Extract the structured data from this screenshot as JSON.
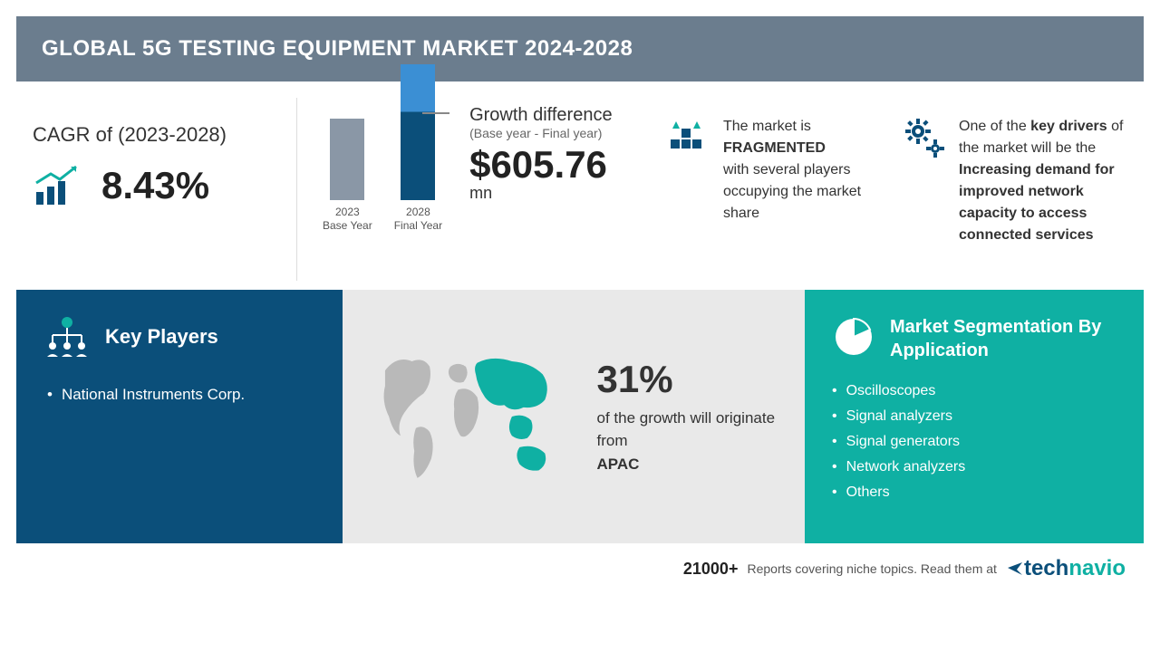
{
  "header": {
    "title": "GLOBAL 5G TESTING EQUIPMENT MARKET 2024-2028"
  },
  "cagr": {
    "label": "CAGR of (2023-2028)",
    "value": "8.43%",
    "icon_color": "#0fb0a3"
  },
  "growth": {
    "title": "Growth difference",
    "subtitle": "(Base year - Final year)",
    "value": "$605.76",
    "unit": "mn",
    "bars": [
      {
        "label_top": "2023",
        "label_bottom": "Base Year",
        "height": 90,
        "colors": [
          "#8a97a6"
        ]
      },
      {
        "label_top": "2028",
        "label_bottom": "Final Year",
        "height": 150,
        "colors": [
          "#3b8fd4",
          "#0b4f7a"
        ]
      }
    ]
  },
  "fragmented": {
    "text_pre": "The market is",
    "highlight": "FRAGMENTED",
    "text_post": "with several players occupying the market share",
    "icon_color": "#0b4f7a"
  },
  "driver": {
    "text_pre": "One of the ",
    "highlight1": "key drivers",
    "text_mid": " of the market will be the ",
    "highlight2": "Increasing demand for improved network capacity to access connected services",
    "icon_color": "#0b4f7a"
  },
  "players": {
    "title": "Key Players",
    "items": [
      "National Instruments Corp."
    ],
    "bg": "#0b4f7a"
  },
  "region": {
    "percent": "31%",
    "desc_pre": "of the growth will originate from",
    "region_name": "APAC",
    "bg": "#e9e9e9",
    "map_land": "#b9b9b9",
    "map_highlight": "#0fb0a3"
  },
  "segmentation": {
    "title": "Market Segmentation By Application",
    "items": [
      "Oscilloscopes",
      "Signal analyzers",
      "Signal generators",
      "Network analyzers",
      "Others"
    ],
    "bg": "#0fb0a3"
  },
  "footer": {
    "count": "21000+",
    "text": "Reports covering niche topics. Read them at",
    "brand1": "tech",
    "brand2": "navio"
  },
  "colors": {
    "header_bg": "#6b7d8e",
    "text": "#333333"
  }
}
